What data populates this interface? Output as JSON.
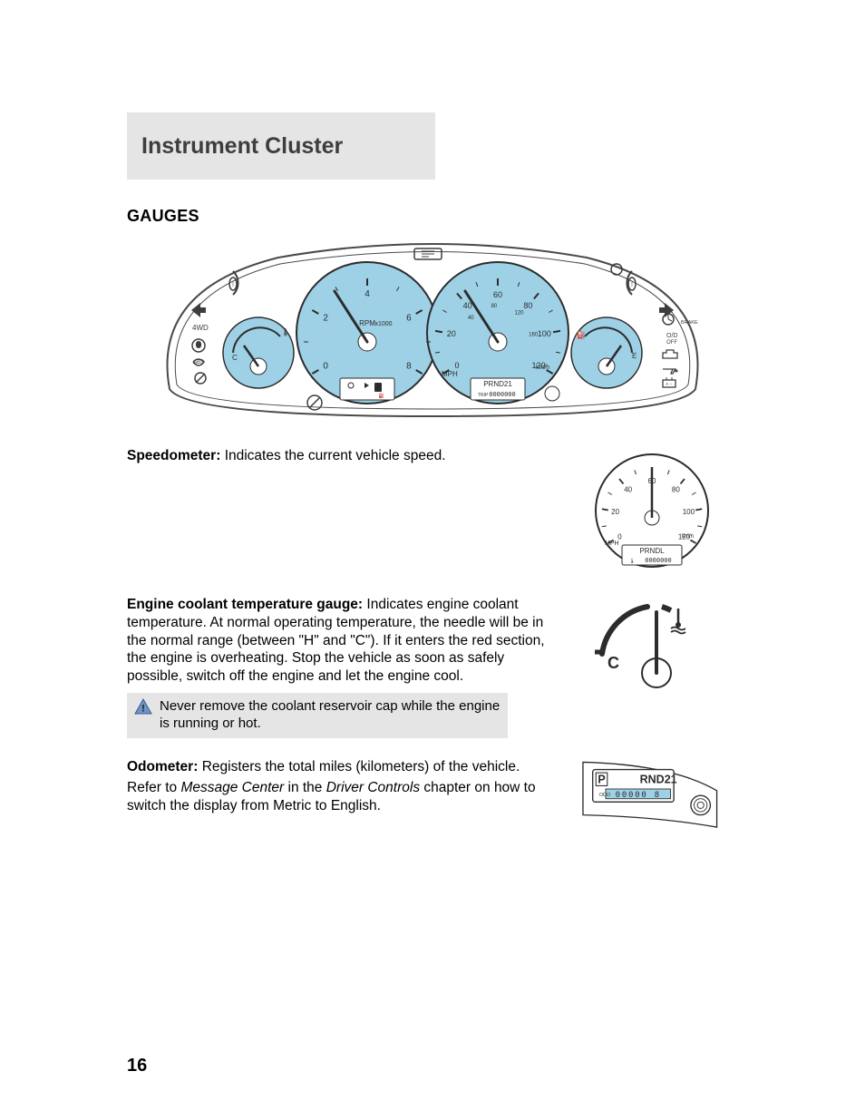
{
  "chapter_title": "Instrument Cluster",
  "section_gauges": "GAUGES",
  "speedometer": {
    "title": "Speedometer:",
    "body": "Indicates the current vehicle speed."
  },
  "temp": {
    "title": "Engine coolant temperature gauge:",
    "body1": "Indicates engine coolant temperature. At normal operating temperature, the needle will be in the normal range (between \"H\" and \"C\"). If it enters the red section, the engine is overheating. Stop the vehicle as soon as safely possible, switch off the engine and let the engine cool.",
    "callout": "Never remove the coolant reservoir cap while the engine is running or hot."
  },
  "odometer": {
    "title": "Odometer:",
    "body": "Registers the total miles (kilometers) of the vehicle.",
    "refer": "Refer to ",
    "refer_italic": "Message Center",
    "refer_tail": " in the ",
    "refer_italic2": "Driver Controls",
    "refer_tail2": " chapter on how to switch the display from Metric to English."
  },
  "page_number": "16",
  "cluster": {
    "bg": "#ffffff",
    "outline": "#4a4a4a",
    "gauge_fill": "#9ed1e6",
    "gauge_stroke": "#2c2c2c",
    "text": "#2c2c2c",
    "icons": "#3d3d3d",
    "speedo_marks": [
      "0",
      "20",
      "40",
      "60",
      "80",
      "100",
      "120"
    ],
    "speedo_sub": [
      "40",
      "80",
      "120",
      "160"
    ],
    "speedo_mph": "MPH",
    "speedo_kmh": "km/h",
    "tach_marks": [
      "0",
      "2",
      "4",
      "6",
      "8"
    ],
    "tach_rpm": "RPM x1000",
    "gear": "PRND21",
    "gear_alt": "PRNDL",
    "odo": "0000000",
    "fuel": {
      "F": "F",
      "E": "E"
    },
    "temp": {
      "H": "H",
      "C": "C"
    },
    "lamp_labels": {
      "4wd": "4WD",
      "brake": "BRAKE",
      "od": "O/D OFF",
      "abs": "ABS"
    },
    "odo_highlight": "#9ed1e6",
    "odo_digits": "00000 8",
    "odo_label": "ODO",
    "trip_label": "TRIP"
  }
}
